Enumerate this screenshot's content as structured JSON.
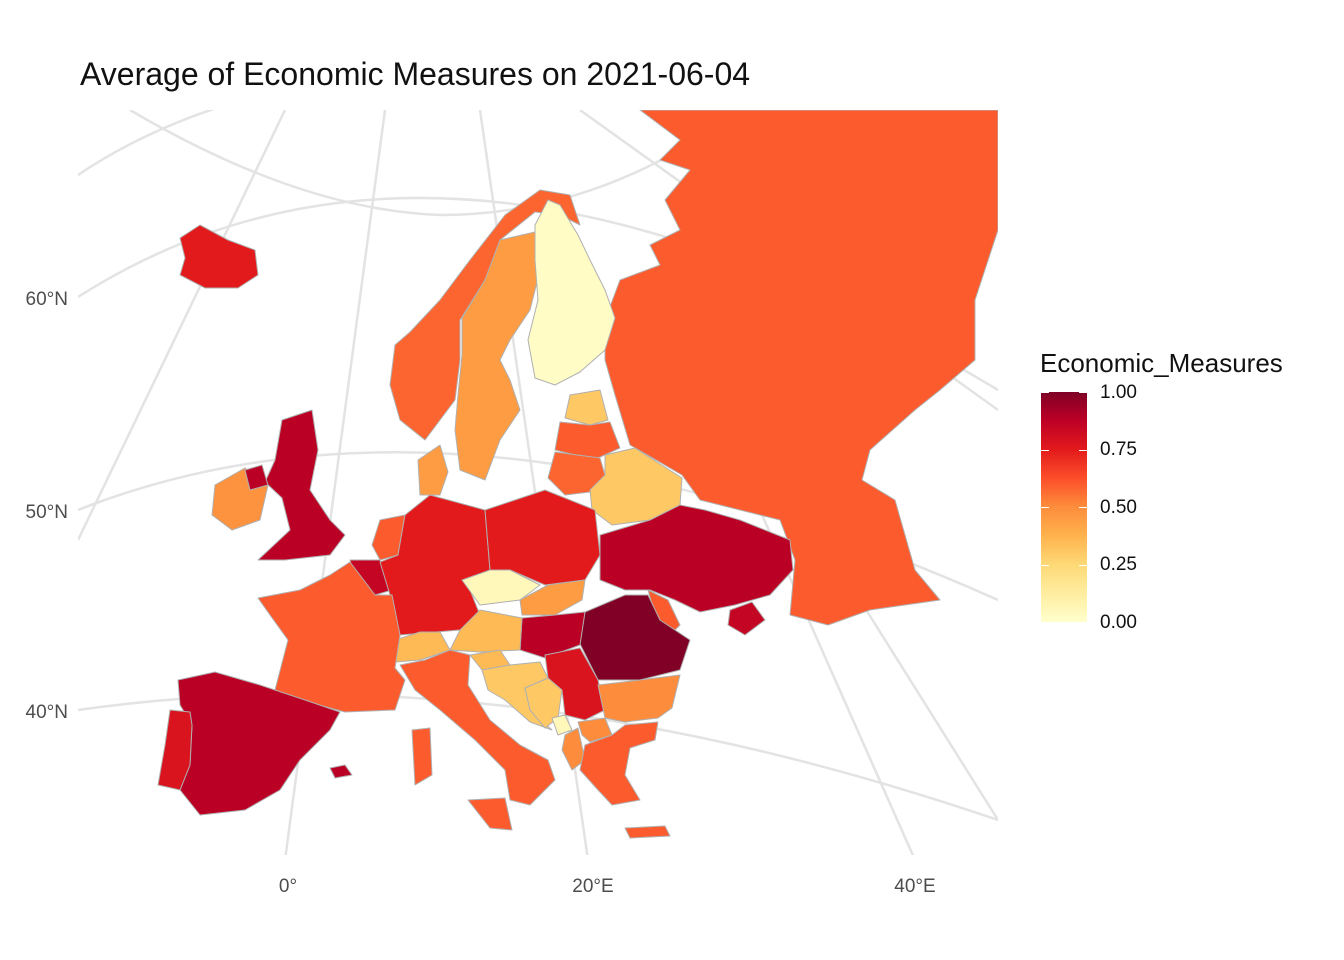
{
  "title": "Average of Economic Measures on 2021-06-04",
  "axes": {
    "lat_labels": [
      "60°N",
      "50°N",
      "40°N"
    ],
    "lon_labels": [
      "0°",
      "20°E",
      "40°E"
    ]
  },
  "legend": {
    "title": "Economic_Measures",
    "ticks": [
      "1.00",
      "0.75",
      "0.50",
      "0.25",
      "0.00"
    ],
    "color_low": "#ffffcc",
    "color_high": "#800026"
  },
  "colors": {
    "border": "#b0b0b0",
    "graticule": "#e3e3e3",
    "no_data": "#b8b8b8"
  },
  "chart_data": {
    "type": "choropleth",
    "scale": "YlOrRd",
    "range": [
      0,
      1
    ],
    "values": {
      "Iceland": 0.75,
      "Ireland": 0.48,
      "United Kingdom": 0.88,
      "Norway": 0.58,
      "Sweden": 0.45,
      "Finland": 0.02,
      "Denmark": 0.45,
      "Estonia": 0.3,
      "Latvia": 0.6,
      "Lithuania": 0.58,
      "Russia": 0.6,
      "Belarus": 0.3,
      "Poland": 0.75,
      "Germany": 0.75,
      "Netherlands": 0.6,
      "Belgium": 0.85,
      "France": 0.6,
      "Spain": 0.88,
      "Portugal": 0.78,
      "Italy": 0.6,
      "Switzerland": 0.35,
      "Austria": 0.35,
      "Czechia": 0.05,
      "Slovakia": 0.45,
      "Hungary": 0.88,
      "Slovenia": 0.35,
      "Croatia": 0.3,
      "Bosnia and Herzegovina": 0.3,
      "Serbia": 0.78,
      "Montenegro": 0.05,
      "Albania": 0.5,
      "North Macedonia": 0.5,
      "Greece": 0.6,
      "Bulgaria": 0.5,
      "Romania": 1.0,
      "Moldova": 0.6,
      "Ukraine": 0.88,
      "Crimea": 0.85
    }
  }
}
